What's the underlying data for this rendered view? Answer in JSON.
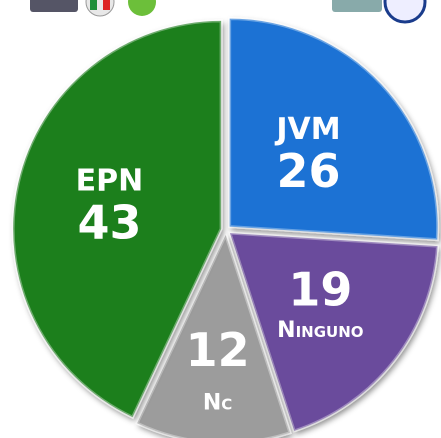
{
  "chart_data": {
    "type": "pie",
    "categories": [
      "JVM",
      "Ninguno",
      "Nc",
      "EPN"
    ],
    "values": [
      26,
      19,
      12,
      43
    ],
    "colors": [
      "#1a72d4",
      "#6b4c9c",
      "#9c9c9c",
      "#1f7f1f"
    ]
  }
}
